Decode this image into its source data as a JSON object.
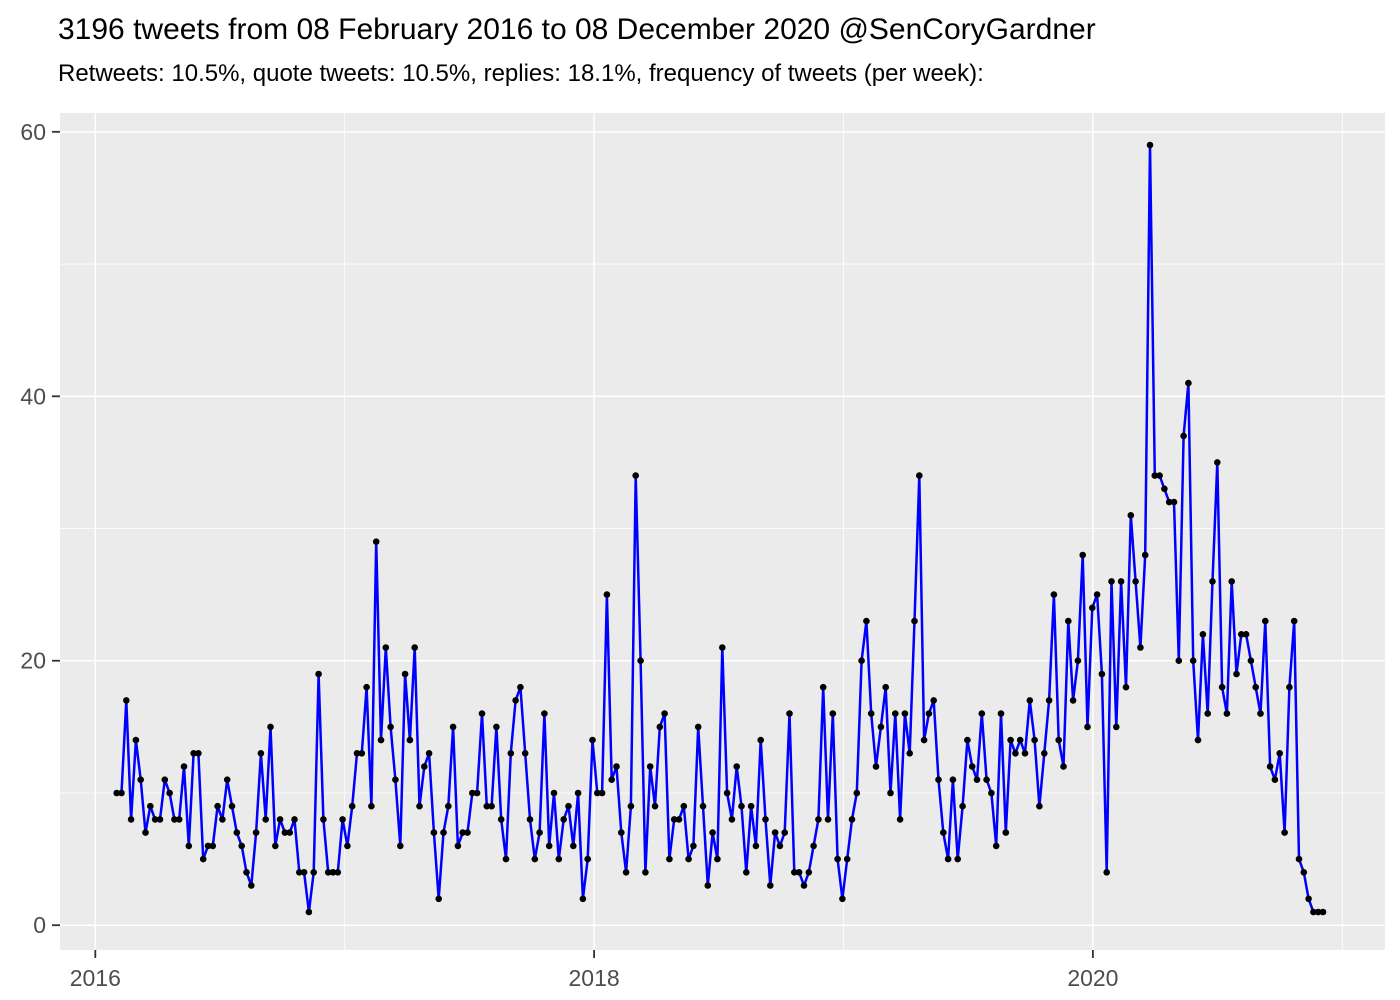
{
  "header": {
    "title": "3196 tweets from 08 February 2016 to 08 December 2020 @SenCoryGardner",
    "subtitle": "Retweets: 10.5%, quote tweets: 10.5%, replies: 18.1%, frequency of tweets (per week):"
  },
  "chart_data": {
    "type": "line",
    "title": "3196 tweets from 08 February 2016 to 08 December 2020 @SenCoryGardner",
    "subtitle": "Retweets: 10.5%, quote tweets: 10.5%, replies: 18.1%, frequency of tweets (per week):",
    "xlabel": "",
    "ylabel": "",
    "x_start": "2016-02-08",
    "x_end": "2020-12-08",
    "frequency": "weekly",
    "ylim": [
      0,
      61.5
    ],
    "grid": "on",
    "legend": "none",
    "x_major_ticks": [
      2016,
      2018,
      2020
    ],
    "x_minor_gridlines": [
      2017,
      2019,
      2021
    ],
    "y_major_ticks": [
      0,
      20,
      40,
      60
    ],
    "y_minor_gridlines": [
      10,
      30,
      50
    ],
    "series": [
      {
        "name": "tweets-per-week",
        "values": [
          10,
          10,
          17,
          8,
          14,
          11,
          7,
          9,
          8,
          8,
          11,
          10,
          8,
          8,
          12,
          6,
          13,
          13,
          5,
          6,
          6,
          9,
          8,
          11,
          9,
          7,
          6,
          4,
          3,
          7,
          13,
          8,
          15,
          6,
          8,
          7,
          7,
          8,
          4,
          4,
          1,
          4,
          19,
          8,
          4,
          4,
          4,
          8,
          6,
          9,
          13,
          13,
          18,
          9,
          29,
          14,
          21,
          15,
          11,
          6,
          19,
          14,
          21,
          9,
          12,
          13,
          7,
          2,
          7,
          9,
          15,
          6,
          7,
          7,
          10,
          10,
          16,
          9,
          9,
          15,
          8,
          5,
          13,
          17,
          18,
          13,
          8,
          5,
          7,
          16,
          6,
          10,
          5,
          8,
          9,
          6,
          10,
          2,
          5,
          14,
          10,
          10,
          25,
          11,
          12,
          7,
          4,
          9,
          34,
          20,
          4,
          12,
          9,
          15,
          16,
          5,
          8,
          8,
          9,
          5,
          6,
          15,
          9,
          3,
          7,
          5,
          21,
          10,
          8,
          12,
          9,
          4,
          9,
          6,
          14,
          8,
          3,
          7,
          6,
          7,
          16,
          4,
          4,
          3,
          4,
          6,
          8,
          18,
          8,
          16,
          5,
          2,
          5,
          8,
          10,
          20,
          23,
          16,
          12,
          15,
          18,
          10,
          16,
          8,
          16,
          13,
          23,
          34,
          14,
          16,
          17,
          11,
          7,
          5,
          11,
          5,
          9,
          14,
          12,
          11,
          16,
          11,
          10,
          6,
          16,
          7,
          14,
          13,
          14,
          13,
          17,
          14,
          9,
          13,
          17,
          25,
          14,
          12,
          23,
          17,
          20,
          28,
          15,
          24,
          25,
          19,
          4,
          26,
          15,
          26,
          18,
          31,
          26,
          21,
          28,
          59,
          34,
          34,
          33,
          32,
          32,
          20,
          37,
          41,
          20,
          14,
          22,
          16,
          26,
          35,
          18,
          16,
          26,
          19,
          22,
          22,
          20,
          18,
          16,
          23,
          12,
          11,
          13,
          7,
          18,
          23,
          5,
          4,
          2,
          1,
          1,
          1
        ]
      }
    ],
    "colors": {
      "line": "#0000FF",
      "marker": "#000000",
      "panel_background": "#EBEBEB",
      "gridline": "#FFFFFF",
      "axis_text": "#4D4D4D",
      "tick_mark": "#333333",
      "title_text": "#000000",
      "page_background": "#FFFFFF"
    }
  }
}
